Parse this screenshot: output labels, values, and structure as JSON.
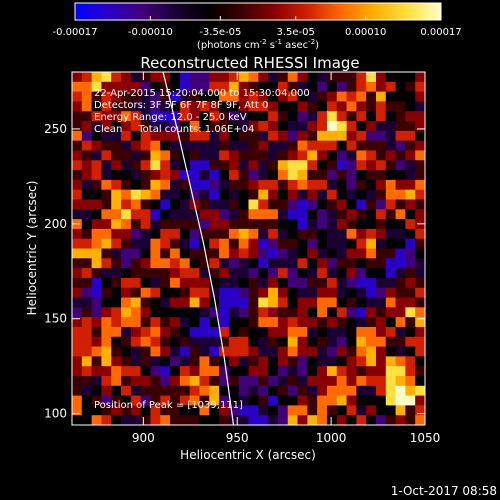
{
  "colorbar": {
    "ticks": [
      "-0.00017",
      "-0.00010",
      "-3.5e-05",
      "3.5e-05",
      "0.00010",
      "0.00017"
    ],
    "tick_values": [
      -0.00017,
      -0.0001,
      -3.5e-05,
      3.5e-05,
      0.0001,
      0.00017
    ],
    "range": [
      -0.00017,
      0.00017
    ],
    "units_main": "(photons cm",
    "units_exp1": "-2",
    "units_mid": " s",
    "units_exp2": "-1",
    "units_end": " asec",
    "units_exp3": "-2",
    "units_close": ")",
    "colors": [
      "#0000ff",
      "#2a00c8",
      "#40007a",
      "#1a0033",
      "#000000",
      "#3a0000",
      "#8a0000",
      "#d02000",
      "#ff6a00",
      "#ffb000",
      "#ffe040",
      "#ffffc8"
    ]
  },
  "chart_data": {
    "type": "heatmap",
    "title": "Reconstructed RHESSI Image",
    "xlabel": "Heliocentric X (arcsec)",
    "ylabel": "Heliocentric Y (arcsec)",
    "xlim": [
      862,
      1050
    ],
    "ylim": [
      94,
      280
    ],
    "x_ticks": [
      "900",
      "950",
      "1000",
      "1050"
    ],
    "x_tick_values": [
      900,
      950,
      1000,
      1050
    ],
    "y_ticks": [
      "100",
      "150",
      "200",
      "250"
    ],
    "y_tick_values": [
      100,
      150,
      200,
      250
    ],
    "annotations": [
      "22-Apr-2015 15:20:04.000 to 15:30:04.000",
      "Detectors: 3F 5F 6F 7F 8F 9F, Att 0",
      "Energy Range: 12.0 - 25.0 keV",
      "Clean     Total counts: 1.06E+04"
    ],
    "peak_label": "Position of Peak = [1039,111]",
    "peak": {
      "x": 1039,
      "y": 111
    },
    "limb_curve": {
      "x": [
        910,
        918,
        925,
        932,
        938,
        943,
        948
      ],
      "y": [
        282,
        250,
        220,
        190,
        160,
        130,
        94
      ]
    }
  },
  "footer": {
    "date": "1-Oct-2017 08:58"
  }
}
